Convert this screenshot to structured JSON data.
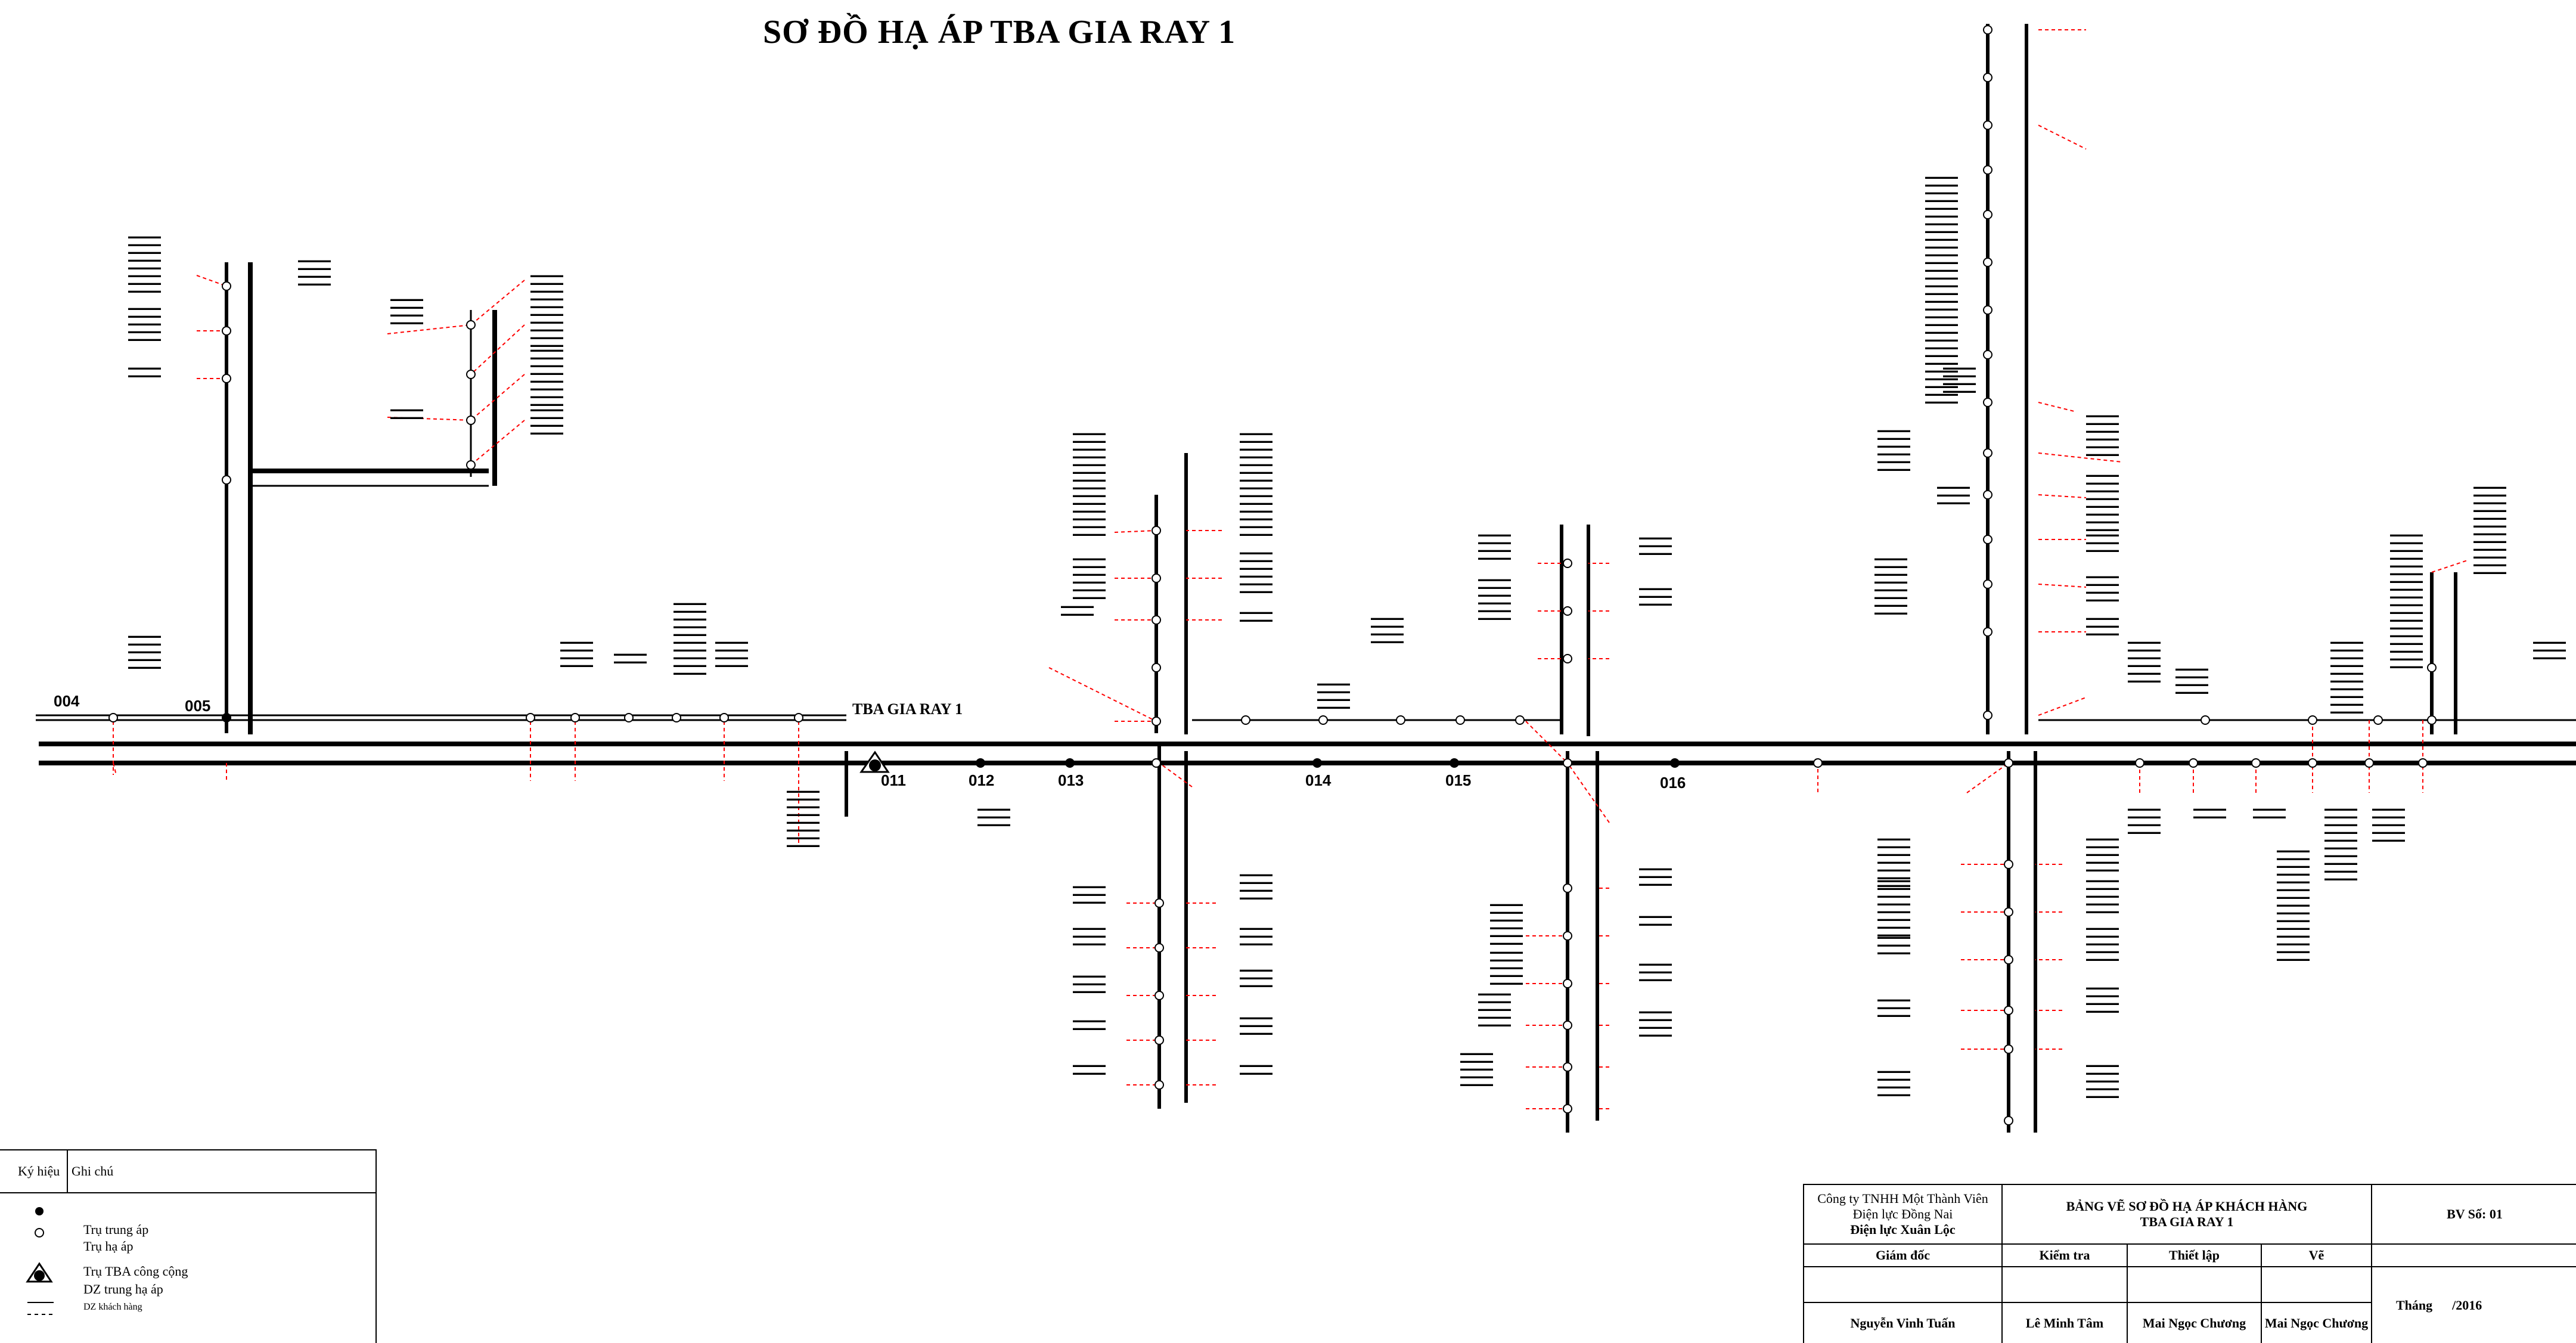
{
  "title": "SƠ ĐỒ HẠ ÁP TBA GIA RAY 1",
  "station_label": "TBA GIA RAY 1",
  "pole_labels": [
    "004",
    "005",
    "011",
    "012",
    "013",
    "014",
    "015",
    "016"
  ],
  "legend": {
    "col_symbol": "Ký hiệu",
    "col_note": "Ghi chú",
    "items": [
      {
        "icon": "filled-dot-icon",
        "text": "Trụ trung áp"
      },
      {
        "icon": "hollow-dot-icon",
        "text": "Trụ hạ áp"
      },
      {
        "icon": "transformer-icon",
        "text": "Trụ TBA công cộng"
      },
      {
        "icon": "solid-line-icon",
        "text": "DZ trung hạ áp"
      },
      {
        "icon": "dashed-line-icon",
        "text": "DZ khách hàng"
      }
    ]
  },
  "title_block": {
    "company_line1": "Công ty TNHH Một Thành Viên",
    "company_line2": "Điện lực Đồng Nai",
    "company_line3": "Điện lực Xuân Lộc",
    "drawing_title_1": "BẢNG VẼ SƠ ĐỒ HẠ ÁP KHÁCH HÀNG",
    "drawing_title_2": "TBA GIA RAY 1",
    "sheet_no": "BV Số: 01",
    "role_director": "Giám đốc",
    "role_check": "Kiểm tra",
    "role_design": "Thiết lập",
    "role_draw": "Vẽ",
    "month": "Tháng",
    "year": "/2016",
    "name_director": "Nguyễn Vinh Tuấn",
    "name_check": "Lê Minh Tâm",
    "name_design": "Mai Ngọc Chương",
    "name_draw": "Mai Ngọc Chương"
  },
  "colors": {
    "line": "#000000",
    "customer_line": "#ff0000",
    "background": "#ffffff"
  }
}
